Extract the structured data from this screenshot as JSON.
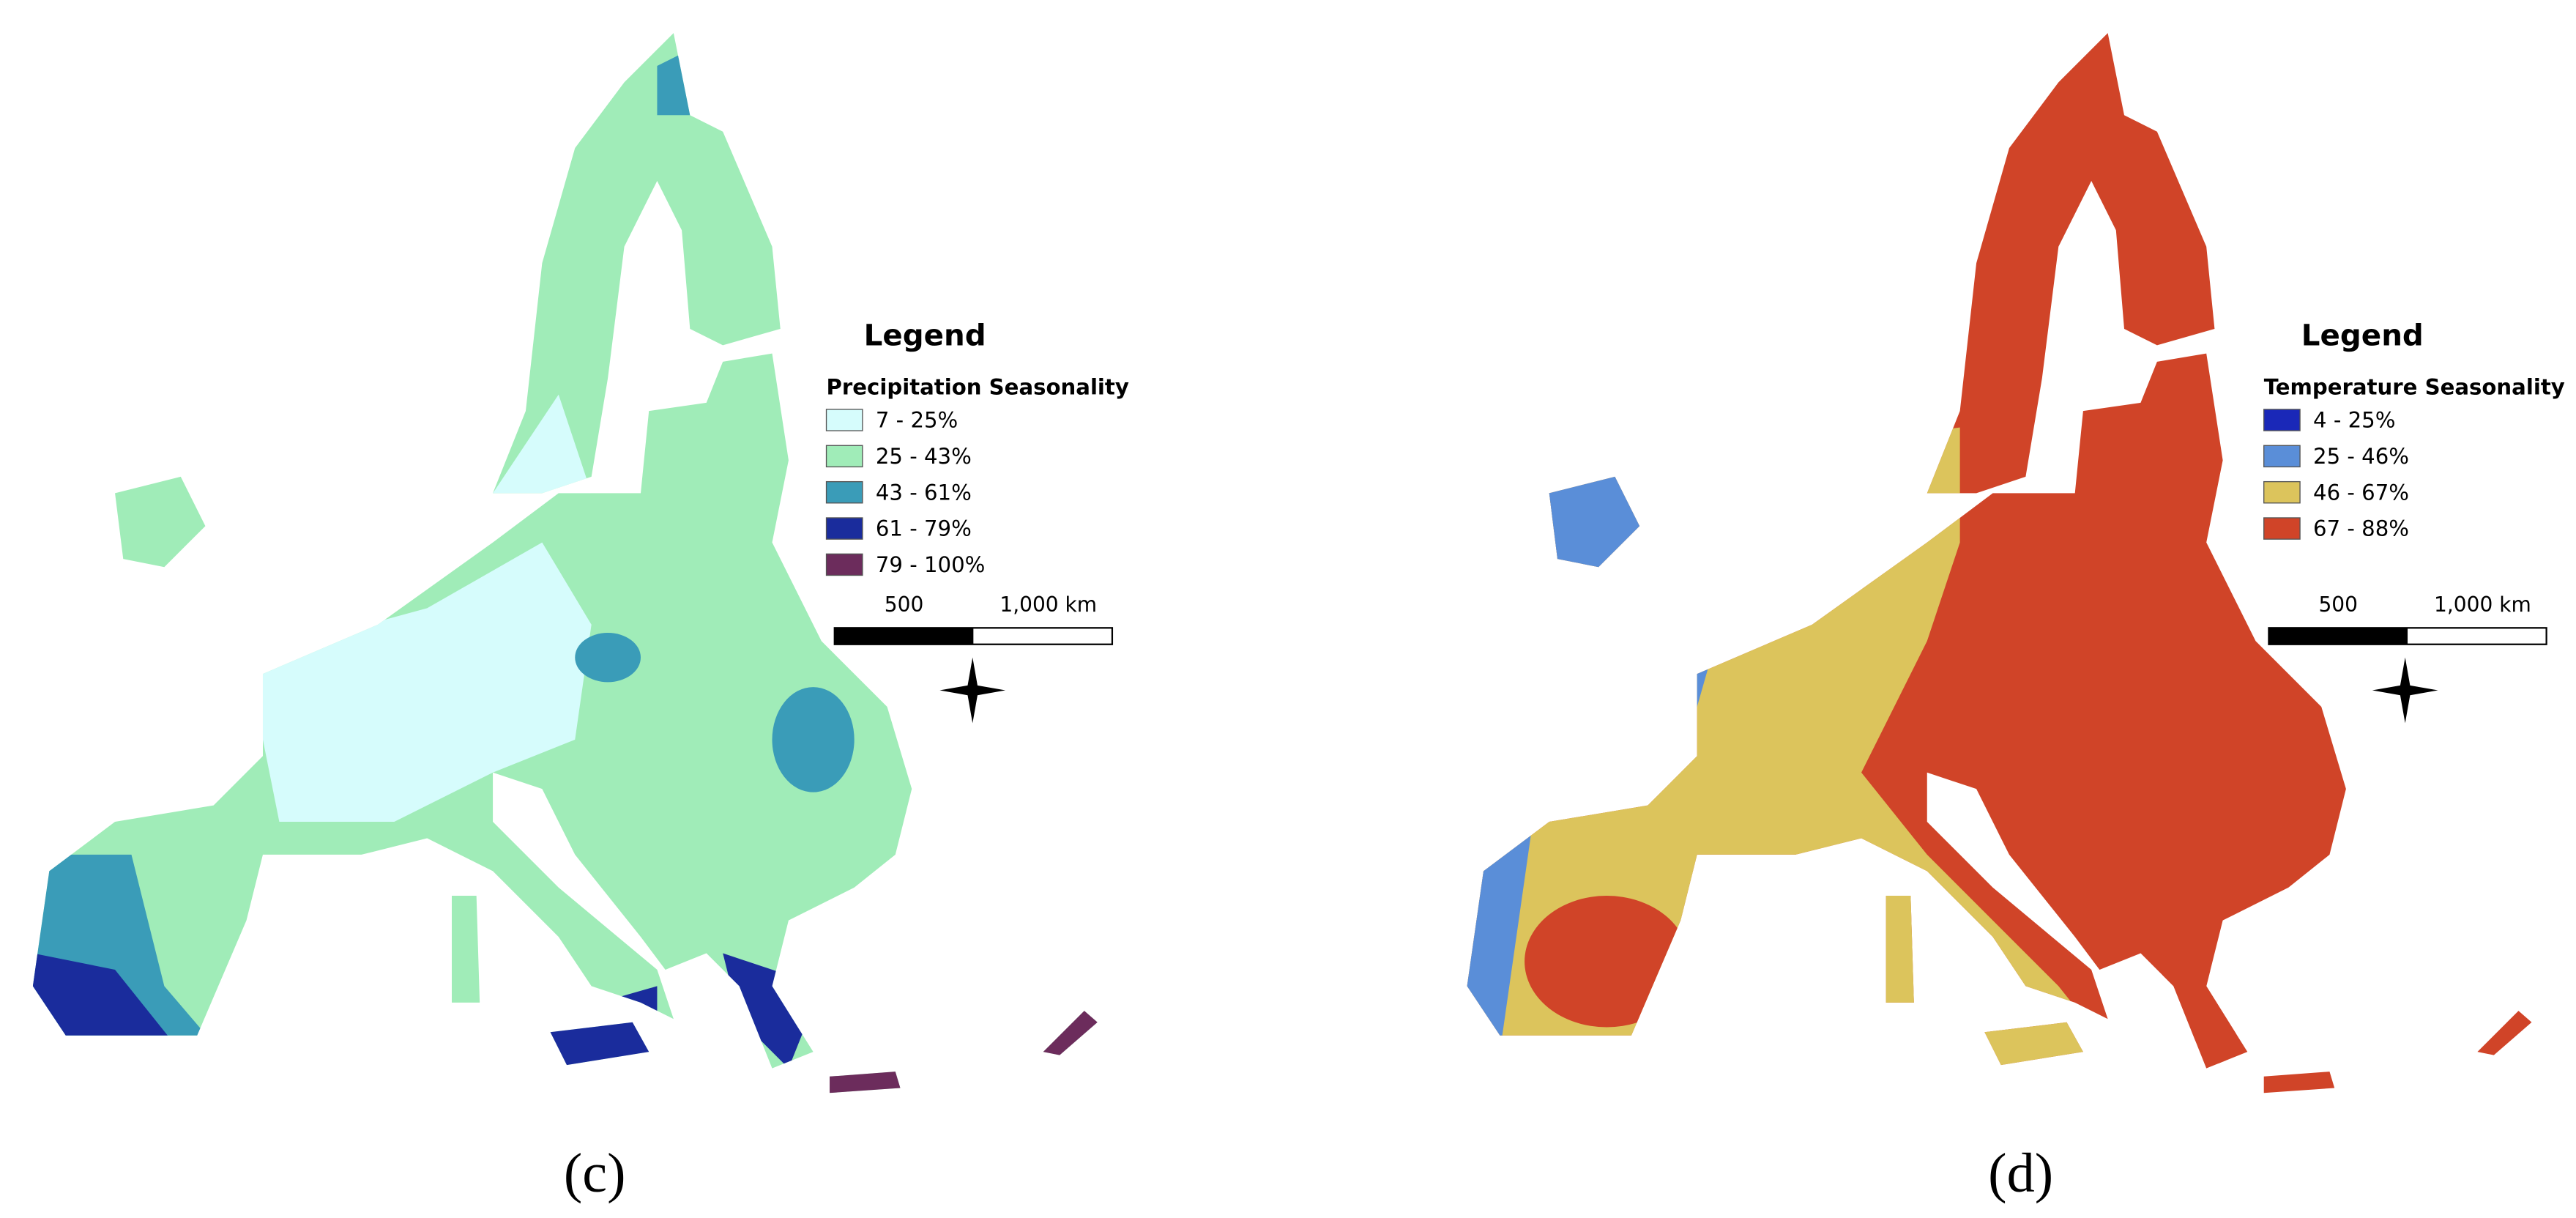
{
  "panels": [
    {
      "legend_title": "Legend",
      "legend_subtitle": "Precipitation Seasonality",
      "items": [
        {
          "label": "7 - 25%",
          "color": "#d6fcfc"
        },
        {
          "label": "25 - 43%",
          "color": "#a0ecb8"
        },
        {
          "label": "43 - 61%",
          "color": "#3a9cb8"
        },
        {
          "label": "61 - 79%",
          "color": "#1a2c9c"
        },
        {
          "label": "79 - 100%",
          "color": "#6c2c5c"
        }
      ],
      "scale_labels": [
        "500",
        "1,000 km"
      ],
      "caption": "(c)"
    },
    {
      "legend_title": "Legend",
      "legend_subtitle": "Temperature Seasonality",
      "items": [
        {
          "label": "4 - 25%",
          "color": "#1a28b8"
        },
        {
          "label": "25 - 46%",
          "color": "#5a8ed8"
        },
        {
          "label": "46 - 67%",
          "color": "#dcc45c"
        },
        {
          "label": "67 - 88%",
          "color": "#d04428"
        }
      ],
      "scale_labels": [
        "500",
        "1,000 km"
      ],
      "caption": "(d)"
    }
  ]
}
